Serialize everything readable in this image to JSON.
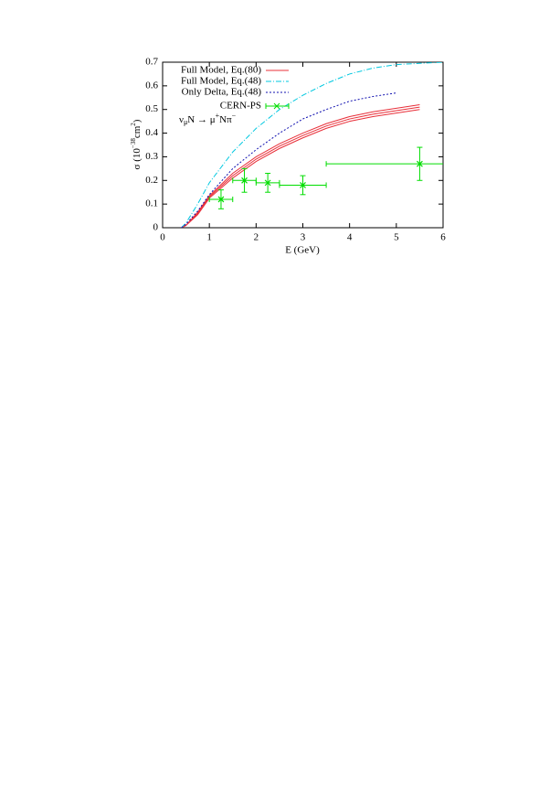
{
  "chart_data": {
    "type": "line",
    "xlabel": "E (GeV)",
    "ylabel": [
      "σ (10",
      "−38",
      "cm",
      "2",
      ")"
    ],
    "annotation": [
      "ν",
      "μ",
      "N → μ",
      "+",
      "Nπ",
      "−"
    ],
    "xlim": [
      0,
      6
    ],
    "ylim": [
      0,
      0.7
    ],
    "xticks": [
      0,
      1,
      2,
      3,
      4,
      5,
      6
    ],
    "yticks": [
      0,
      0.1,
      0.2,
      0.3,
      0.4,
      0.5,
      0.6,
      0.7
    ],
    "x": [
      0.4,
      0.5,
      0.75,
      1,
      1.5,
      2,
      2.5,
      3,
      3.5,
      4,
      4.5,
      5,
      5.5,
      6
    ],
    "series": [
      {
        "name": "Full Model, Eq.(80)",
        "color": "#e8303a",
        "style": "solid",
        "values": [
          0,
          0.01,
          0.065,
          0.135,
          0.23,
          0.3,
          0.355,
          0.4,
          0.44,
          0.47,
          0.49,
          0.505,
          0.52,
          null
        ]
      },
      {
        "color": "#e8303a",
        "style": "solid",
        "values": [
          0,
          0.01,
          0.06,
          0.13,
          0.22,
          0.29,
          0.345,
          0.39,
          0.43,
          0.46,
          0.48,
          0.495,
          0.51,
          null
        ]
      },
      {
        "color": "#e8303a",
        "style": "solid",
        "values": [
          0,
          0.01,
          0.055,
          0.125,
          0.21,
          0.28,
          0.335,
          0.38,
          0.42,
          0.45,
          0.47,
          0.485,
          0.5,
          null
        ]
      },
      {
        "name": "Full Model, Eq.(48)",
        "color": "#00c8e0",
        "style": "dashdot",
        "values": [
          0,
          0.02,
          0.1,
          0.19,
          0.32,
          0.42,
          0.5,
          0.56,
          0.61,
          0.65,
          0.675,
          0.69,
          0.695,
          0.7
        ]
      },
      {
        "name": "Only Delta, Eq.(48)",
        "color": "#1010b0",
        "style": "dotted",
        "values": [
          0,
          0.015,
          0.07,
          0.14,
          0.25,
          0.33,
          0.4,
          0.46,
          0.5,
          0.535,
          0.555,
          0.57,
          null,
          null
        ]
      },
      {
        "name": "CERN-PS",
        "color": "#00dd00",
        "style": "errorbar",
        "x": [
          1.25,
          1.75,
          2.25,
          3.0,
          5.5
        ],
        "values": [
          0.12,
          0.2,
          0.19,
          0.18,
          0.27
        ],
        "xerr": [
          0.25,
          0.25,
          0.25,
          0.5,
          2
        ],
        "yerr": [
          0.04,
          0.05,
          0.04,
          0.04,
          0.07
        ]
      }
    ]
  }
}
